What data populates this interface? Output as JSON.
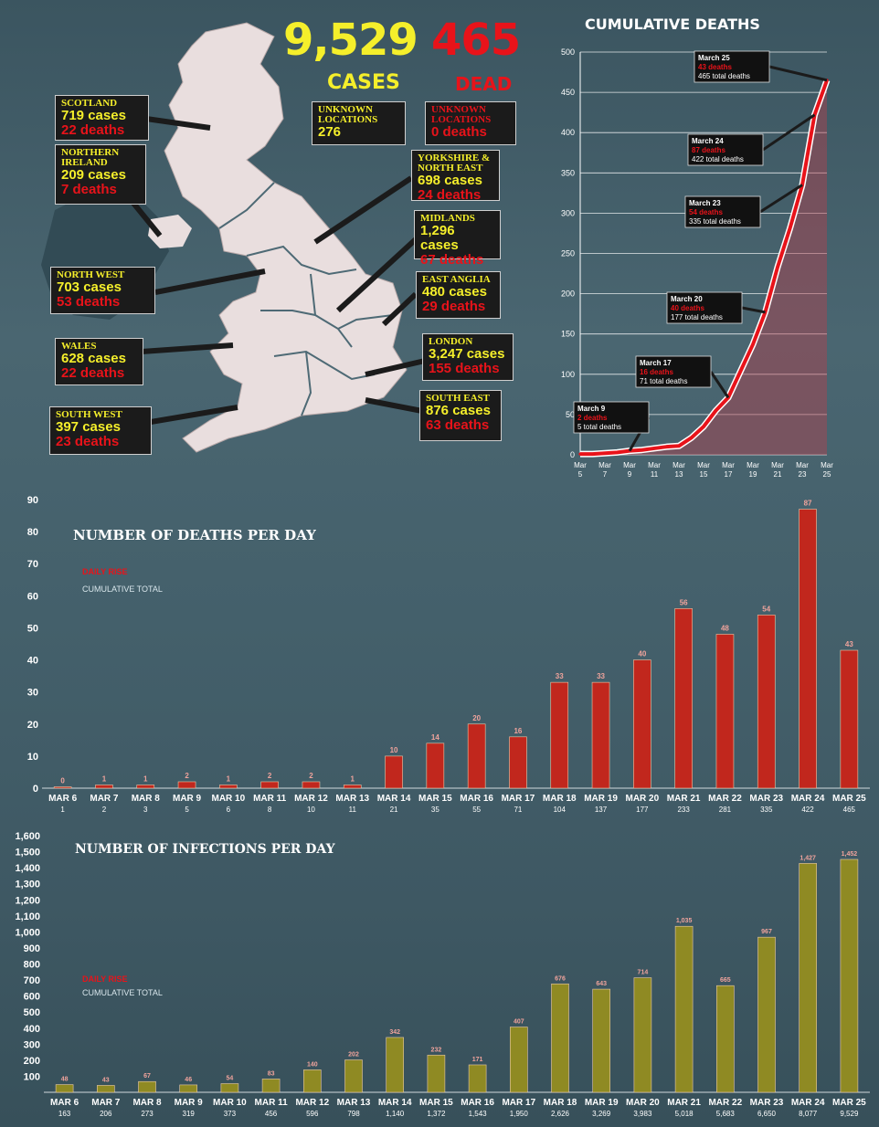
{
  "headline": {
    "cases": "9,529",
    "cases_label": "CASES",
    "dead": "465",
    "dead_label": "DEAD"
  },
  "regions": [
    {
      "name": "SCOTLAND",
      "cases": "719 cases",
      "deaths": "22 deaths"
    },
    {
      "name": "NORTHERN IRELAND",
      "cases": "209 cases",
      "deaths": "7 deaths"
    },
    {
      "name": "NORTH WEST",
      "cases": "703 cases",
      "deaths": "53 deaths"
    },
    {
      "name": "WALES",
      "cases": "628 cases",
      "deaths": "22 deaths"
    },
    {
      "name": "SOUTH WEST",
      "cases": "397 cases",
      "deaths": "23 deaths"
    },
    {
      "name": "UNKNOWN LOCATIONS",
      "cases": "276",
      "deaths": ""
    },
    {
      "name": "UNKNOWN LOCATIONS",
      "cases": "",
      "deaths": "0 deaths"
    },
    {
      "name": "YORKSHIRE & NORTH EAST",
      "cases": "698 cases",
      "deaths": "24 deaths"
    },
    {
      "name": "MIDLANDS",
      "cases": "1,296 cases",
      "deaths": "67 deaths"
    },
    {
      "name": "EAST ANGLIA",
      "cases": "480 cases",
      "deaths": "29 deaths"
    },
    {
      "name": "LONDON",
      "cases": "3,247 cases",
      "deaths": "155 deaths"
    },
    {
      "name": "SOUTH EAST",
      "cases": "876 cases",
      "deaths": "63 deaths"
    }
  ],
  "colors": {
    "red": "#e8131a",
    "yellow": "#f5ef2b",
    "bar_red": "#c1271d",
    "bar_olive": "#8f8a23"
  },
  "chart_data": [
    {
      "type": "line",
      "title": "CUMULATIVE DEATHS",
      "x": [
        "Mar 5",
        "Mar 6",
        "Mar 7",
        "Mar 8",
        "Mar 9",
        "Mar 10",
        "Mar 11",
        "Mar 12",
        "Mar 13",
        "Mar 14",
        "Mar 15",
        "Mar 16",
        "Mar 17",
        "Mar 18",
        "Mar 19",
        "Mar 20",
        "Mar 21",
        "Mar 22",
        "Mar 23",
        "Mar 24",
        "Mar 25"
      ],
      "x_tick_labels": [
        "Mar 5",
        "Mar 7",
        "Mar 9",
        "Mar 11",
        "Mar 13",
        "Mar 15",
        "Mar 17",
        "Mar 19",
        "Mar 21",
        "Mar 23",
        "Mar 25"
      ],
      "values": [
        1,
        1,
        2,
        3,
        5,
        6,
        8,
        10,
        11,
        21,
        35,
        55,
        71,
        104,
        137,
        177,
        233,
        281,
        335,
        422,
        465
      ],
      "ylim": [
        0,
        500
      ],
      "yticks": [
        0,
        50,
        100,
        150,
        200,
        250,
        300,
        350,
        400,
        450,
        500
      ],
      "annotations": [
        {
          "date": "March 9",
          "deaths": "2 deaths",
          "total": "5 total deaths"
        },
        {
          "date": "March 17",
          "deaths": "16 deaths",
          "total": "71 total deaths"
        },
        {
          "date": "March 20",
          "deaths": "40 deaths",
          "total": "177 total deaths"
        },
        {
          "date": "March 23",
          "deaths": "54 deaths",
          "total": "335 total deaths"
        },
        {
          "date": "March 24",
          "deaths": "87 deaths",
          "total": "422 total deaths"
        },
        {
          "date": "March 25",
          "deaths": "43 deaths",
          "total": "465 total deaths"
        }
      ]
    },
    {
      "type": "bar",
      "title": "NUMBER OF DEATHS PER DAY",
      "legend": [
        "DAILY RISE",
        "CUMULATIVE TOTAL"
      ],
      "categories": [
        "MAR 6",
        "MAR 7",
        "MAR 8",
        "MAR 9",
        "MAR 10",
        "MAR 11",
        "MAR 12",
        "MAR 13",
        "MAR 14",
        "MAR 15",
        "MAR 16",
        "MAR 17",
        "MAR 18",
        "MAR 19",
        "MAR 20",
        "MAR 21",
        "MAR 22",
        "MAR 23",
        "MAR 24",
        "MAR 25"
      ],
      "values": [
        0,
        1,
        1,
        2,
        1,
        2,
        2,
        1,
        10,
        14,
        20,
        16,
        33,
        33,
        40,
        56,
        48,
        54,
        87,
        43
      ],
      "cumulative": [
        "1",
        "2",
        "3",
        "5",
        "6",
        "8",
        "10",
        "11",
        "21",
        "35",
        "55",
        "71",
        "104",
        "137",
        "177",
        "233",
        "281",
        "335",
        "422",
        "465"
      ],
      "ylim": [
        0,
        90
      ],
      "yticks": [
        0,
        10,
        20,
        30,
        40,
        50,
        60,
        70,
        80,
        90
      ]
    },
    {
      "type": "bar",
      "title": "NUMBER OF INFECTIONS PER DAY",
      "legend": [
        "DAILY RISE",
        "CUMULATIVE TOTAL"
      ],
      "categories": [
        "MAR 6",
        "MAR 7",
        "MAR 8",
        "MAR 9",
        "MAR 10",
        "MAR 11",
        "MAR 12",
        "MAR 13",
        "MAR 14",
        "MAR 15",
        "MAR 16",
        "MAR 17",
        "MAR 18",
        "MAR 19",
        "MAR 20",
        "MAR 21",
        "MAR 22",
        "MAR 23",
        "MAR 24",
        "MAR 25"
      ],
      "values": [
        48,
        43,
        67,
        46,
        54,
        83,
        140,
        202,
        342,
        232,
        171,
        407,
        676,
        643,
        714,
        1035,
        665,
        967,
        1427,
        1452
      ],
      "value_labels": [
        "48",
        "43",
        "67",
        "46",
        "54",
        "83",
        "140",
        "202",
        "342",
        "232",
        "171",
        "407",
        "676",
        "643",
        "714",
        "1,035",
        "665",
        "967",
        "1,427",
        "1,452"
      ],
      "cumulative": [
        "163",
        "206",
        "273",
        "319",
        "373",
        "456",
        "596",
        "798",
        "1,140",
        "1,372",
        "1,543",
        "1,950",
        "2,626",
        "3,269",
        "3,983",
        "5,018",
        "5,683",
        "6,650",
        "8,077",
        "9,529"
      ],
      "ylim": [
        0,
        1600
      ],
      "yticks": [
        100,
        200,
        300,
        400,
        500,
        600,
        700,
        800,
        900,
        1000,
        1100,
        1200,
        1300,
        1400,
        1500,
        1600
      ],
      "ytick_labels": [
        "100",
        "200",
        "300",
        "400",
        "500",
        "600",
        "700",
        "800",
        "900",
        "1,000",
        "1,100",
        "1,200",
        "1,300",
        "1,400",
        "1,500",
        "1,600"
      ]
    }
  ]
}
